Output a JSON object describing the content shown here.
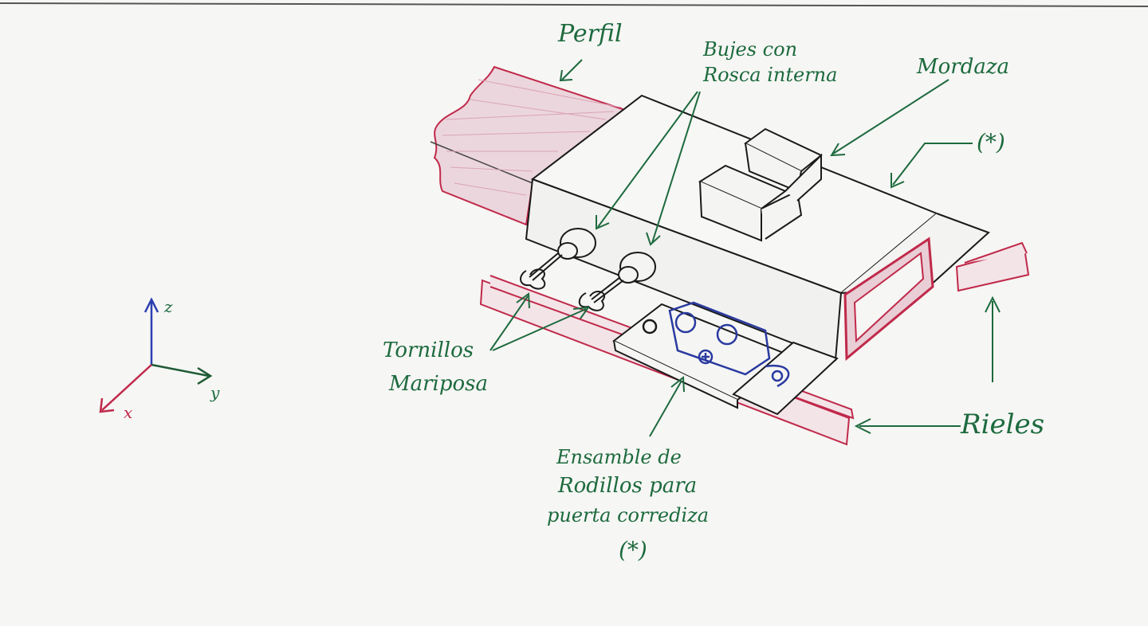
{
  "labels": {
    "perfil": "Perfil",
    "bujes_1": "Bujes con",
    "bujes_2": "Rosca interna",
    "mordaza": "Mordaza",
    "asterisk_top": "(*)",
    "tornillos_1": "Tornillos",
    "tornillos_2": "Mariposa",
    "rieles": "Rieles",
    "ensamble_1": "Ensamble de",
    "ensamble_2": "Rodillos para",
    "ensamble_3": "puerta corrediza",
    "ensamble_4": "(*)"
  },
  "axes": {
    "z": "z",
    "y": "y",
    "x": "x"
  },
  "colors": {
    "ink": "#1a1a1a",
    "label_green": "#1d6a3e",
    "rail_red": "#c0294a",
    "profile_pink": "#d9a3b4",
    "axis_blue": "#2b3fb0",
    "roller_blue": "#2a3aa0"
  }
}
